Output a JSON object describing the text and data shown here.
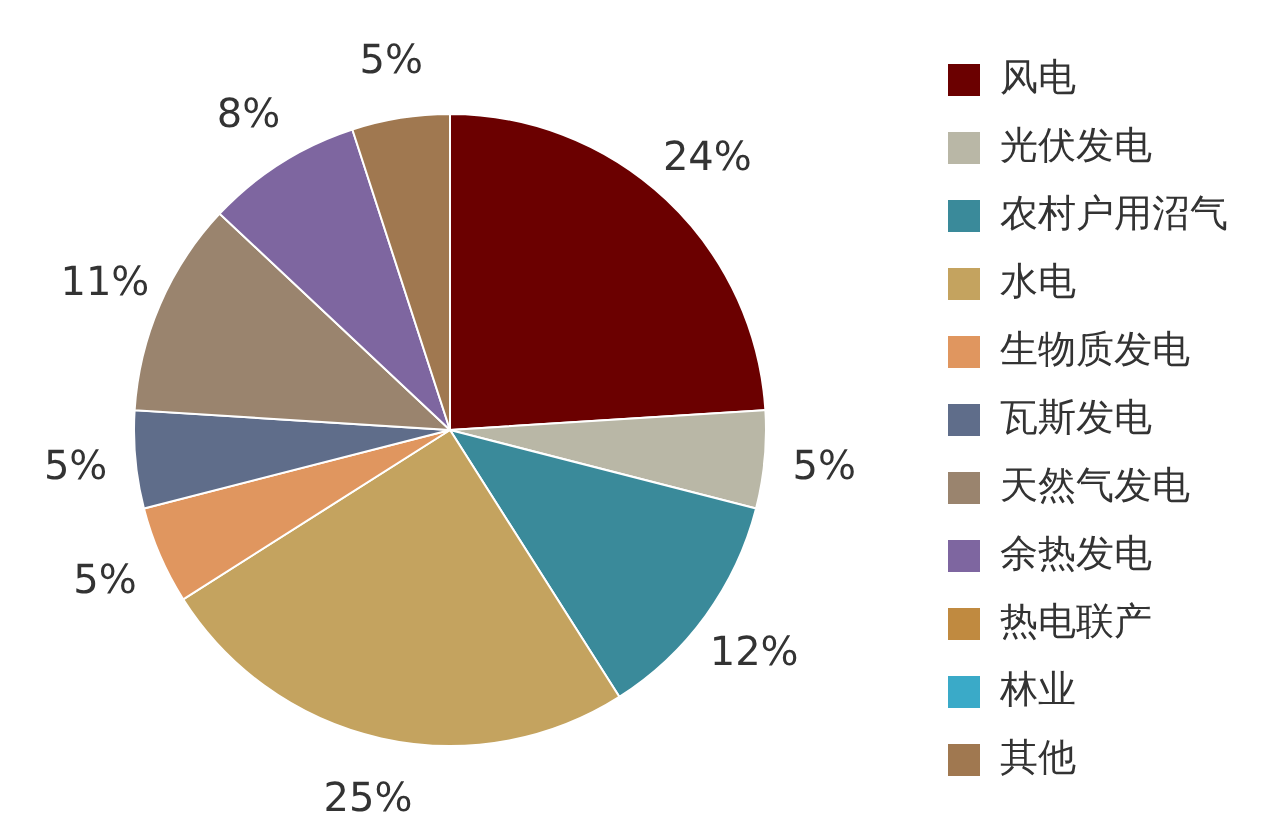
{
  "chart_data": {
    "type": "pie",
    "categories": [
      "风电",
      "光伏发电",
      "农村户用沼气",
      "水电",
      "生物质发电",
      "瓦斯发电",
      "天然气发电",
      "余热发电",
      "热电联产",
      "林业",
      "其他"
    ],
    "values": [
      24,
      5,
      12,
      25,
      5,
      5,
      11,
      8,
      0,
      0,
      5
    ],
    "value_labels": [
      "24%",
      "5%",
      "12%",
      "25%",
      "5%",
      "5%",
      "11%",
      "8%",
      null,
      null,
      "5%"
    ],
    "colors": [
      "#6b0000",
      "#b9b7a6",
      "#3a8a9a",
      "#c4a35f",
      "#e0965f",
      "#5f6d8a",
      "#9a846e",
      "#7e66a0",
      "#c08a40",
      "#3aaac8",
      "#a07850"
    ],
    "legend": "right"
  }
}
